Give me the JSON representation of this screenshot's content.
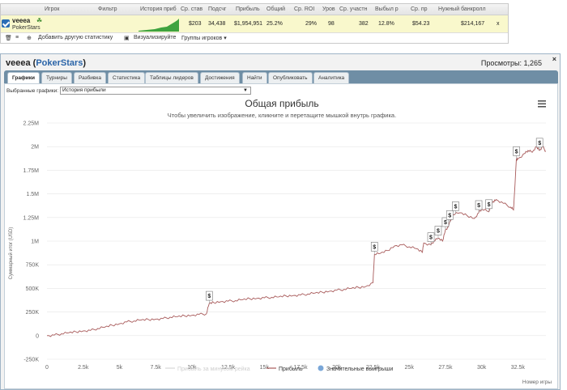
{
  "stats_table": {
    "headers": [
      "Игрок",
      "Фильтр",
      "История приб",
      "Ср. став",
      "Подсчг",
      "Прибыль",
      "Общий",
      "Ср. ROI",
      "Уров",
      "Ср. участн",
      "Выбыл р",
      "Ср. пр",
      "Нужный банкролл"
    ],
    "row": {
      "player": "veeea",
      "site": "PokerStars",
      "avg_stake": "$203",
      "count": "34,438",
      "profit": "$1,954,951",
      "total": "25.2%",
      "avg_roi": "29%",
      "level": "98",
      "avg_entrants": "382",
      "knocked": "12.8%",
      "avg_prize": "$54.23",
      "bankroll": "$214,167",
      "remove": "x"
    },
    "tools": {
      "add_stats": "Добавить другую статистику",
      "visualize": "Визуализируйте",
      "groups": "Группы игроков"
    }
  },
  "panel": {
    "player": "veeea",
    "site": "PokerStars",
    "views_label": "Просмотры: 1,265",
    "close": "×",
    "tabs": [
      {
        "label": "Графики",
        "active": true
      },
      {
        "label": "Турниры"
      },
      {
        "label": "Разбивка"
      },
      {
        "label": "Статистика"
      },
      {
        "label": "Таблицы лидеров"
      },
      {
        "label": "Достижения"
      },
      {
        "label": "Найти"
      },
      {
        "label": "Опубликовать"
      },
      {
        "label": "Аналитика"
      }
    ],
    "select_label": "Выбранные графики:",
    "select_value": "История прибыли"
  },
  "chart_data": {
    "type": "line",
    "title": "Общая прибыль",
    "subtitle": "Чтобы увеличить изображение, кликните и перетащите мышкой внутрь графика.",
    "ylabel": "Суммарный итог (USD)",
    "xlabel": "Номер игры",
    "xlim": [
      0,
      34438
    ],
    "ylim": [
      -250000,
      2250000
    ],
    "y_ticks": [
      "-250K",
      "0",
      "250K",
      "500K",
      "750K",
      "1M",
      "1.25M",
      "1.5M",
      "1.75M",
      "2M",
      "2.25M"
    ],
    "x_ticks": [
      "0",
      "2.5k",
      "5k",
      "7.5k",
      "10k",
      "12.5k",
      "15k",
      "17.5k",
      "20k",
      "22.5k",
      "25k",
      "27.5k",
      "30k",
      "32.5k"
    ],
    "legend": [
      {
        "name": "Прибыль за минусом рейка",
        "color": "#d7d7d7",
        "hidden": true
      },
      {
        "name": "Прибыль",
        "color": "#a85a5a"
      },
      {
        "name": "Значительные выигрыши",
        "color": "#7aa7d8",
        "marker": true
      }
    ],
    "series": [
      {
        "name": "Прибыль",
        "x": [
          0,
          500,
          1000,
          1500,
          2000,
          2500,
          3000,
          3500,
          4000,
          4500,
          5000,
          5500,
          6000,
          6500,
          7000,
          7500,
          8000,
          8500,
          9000,
          9500,
          10000,
          10500,
          11000,
          11200,
          11500,
          12000,
          12500,
          13000,
          13500,
          14000,
          14500,
          15000,
          15500,
          16000,
          16500,
          17000,
          17500,
          18000,
          18500,
          19000,
          19500,
          20000,
          20500,
          21000,
          21500,
          22000,
          22500,
          22600,
          23000,
          23500,
          24000,
          24500,
          25000,
          25500,
          25900,
          26000,
          26500,
          26700,
          27000,
          27300,
          27500,
          27700,
          28000,
          28500,
          29000,
          29500,
          29800,
          30000,
          30500,
          30800,
          31000,
          31500,
          32000,
          32200,
          32400,
          32500,
          33000,
          33200,
          33500,
          33800,
          34000,
          34200,
          34438
        ],
        "values": [
          0,
          5000,
          20000,
          30000,
          40000,
          50000,
          55000,
          75000,
          90000,
          110000,
          125000,
          145000,
          155000,
          165000,
          170000,
          175000,
          180000,
          195000,
          200000,
          210000,
          215000,
          225000,
          230000,
          340000,
          350000,
          360000,
          365000,
          370000,
          380000,
          390000,
          395000,
          400000,
          405000,
          410000,
          420000,
          425000,
          430000,
          440000,
          450000,
          460000,
          470000,
          480000,
          490000,
          500000,
          510000,
          520000,
          560000,
          860000,
          870000,
          900000,
          950000,
          960000,
          940000,
          920000,
          880000,
          980000,
          960000,
          1000000,
          1030000,
          1000000,
          1120000,
          1150000,
          1280000,
          1300000,
          1270000,
          1240000,
          1300000,
          1340000,
          1310000,
          1420000,
          1440000,
          1400000,
          1360000,
          1330000,
          1870000,
          1870000,
          1930000,
          1960000,
          1940000,
          2000000,
          1960000,
          2000000,
          1950000
        ]
      }
    ],
    "big_wins_x": [
      11200,
      22600,
      26500,
      27000,
      27500,
      27800,
      28200,
      29800,
      30500,
      32400,
      34000
    ]
  }
}
